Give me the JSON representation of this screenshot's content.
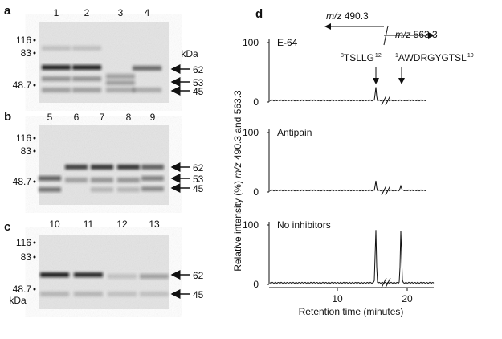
{
  "panels": {
    "a": {
      "label": "a",
      "lanes": [
        "1",
        "2",
        "3",
        "4"
      ],
      "markers": [
        "116",
        "83",
        "48.7"
      ],
      "unit": "kDa",
      "arrows": [
        "62",
        "53",
        "45"
      ]
    },
    "b": {
      "label": "b",
      "lanes": [
        "5",
        "6",
        "7",
        "8",
        "9"
      ],
      "markers": [
        "116",
        "83",
        "48.7"
      ],
      "arrows": [
        "62",
        "53",
        "45"
      ]
    },
    "c": {
      "label": "c",
      "lanes": [
        "10",
        "11",
        "12",
        "13"
      ],
      "markers": [
        "116",
        "83",
        "48.7"
      ],
      "unit": "kDa",
      "arrows": [
        "62",
        "45"
      ]
    },
    "d": {
      "label": "d",
      "y_label": [
        "Relative intensity (%) ",
        "m/z",
        " 490.3 and 563.3"
      ],
      "x_label": "Retention time (minutes)",
      "x_ticks": [
        "10",
        "20"
      ],
      "y_ticks": [
        "0",
        "100"
      ],
      "ions": [
        {
          "prefix": "m/z",
          "value": "490.3"
        },
        {
          "prefix": "m/z",
          "value": "563.3"
        }
      ],
      "peptides": [
        {
          "start": "8",
          "seq": "TSLLG",
          "end": "12"
        },
        {
          "start": "1",
          "seq": "AWDRGYGTSL",
          "end": "10"
        }
      ],
      "traces": [
        "E-64",
        "Antipain",
        "No inhibitors"
      ]
    }
  }
}
